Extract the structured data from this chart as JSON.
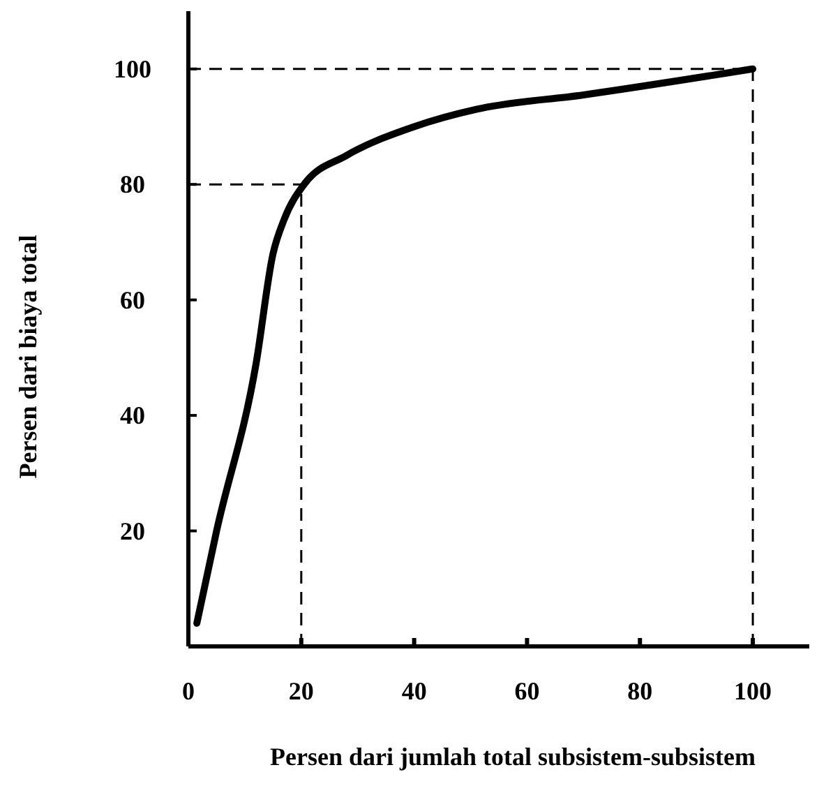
{
  "chart_data": {
    "type": "line",
    "xlabel": "Persen dari jumlah total subsistem-subsistem",
    "ylabel": "Persen dari biaya total",
    "x": [
      1.5,
      5,
      12,
      15,
      17,
      20.5,
      28,
      40,
      51,
      70,
      100
    ],
    "series": [
      {
        "color": "#000000",
        "values": [
          4,
          20,
          49,
          68,
          74,
          80,
          85,
          90,
          93,
          95.5,
          100
        ]
      }
    ],
    "xlim": [
      0,
      110
    ],
    "ylim": [
      0,
      110
    ],
    "xticks": [
      0,
      20,
      40,
      60,
      80,
      100
    ],
    "yticks": [
      20,
      40,
      60,
      80,
      100
    ],
    "ref_lines": [
      {
        "axis": "y",
        "value": 80,
        "line_style": "dashed"
      },
      {
        "axis": "x",
        "value": 20,
        "line_style": "dashed"
      },
      {
        "axis": "y",
        "value": 100,
        "line_style": "dashed"
      },
      {
        "axis": "x",
        "value": 100,
        "line_style": "dashed"
      }
    ],
    "grid": false,
    "marker": "none",
    "line_style": "solid"
  }
}
